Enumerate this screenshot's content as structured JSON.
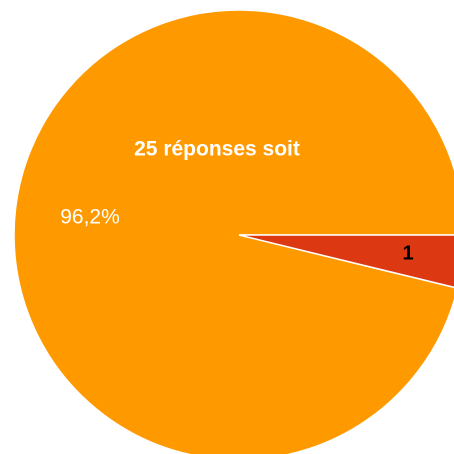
{
  "chart_data": {
    "type": "pie",
    "values": [
      96.2,
      3.8
    ],
    "value_labels": [
      "96,2%",
      null
    ],
    "colors": [
      "#ff9900",
      "#dc3912"
    ],
    "annotations": [
      "25 réponses soit",
      "1"
    ]
  }
}
